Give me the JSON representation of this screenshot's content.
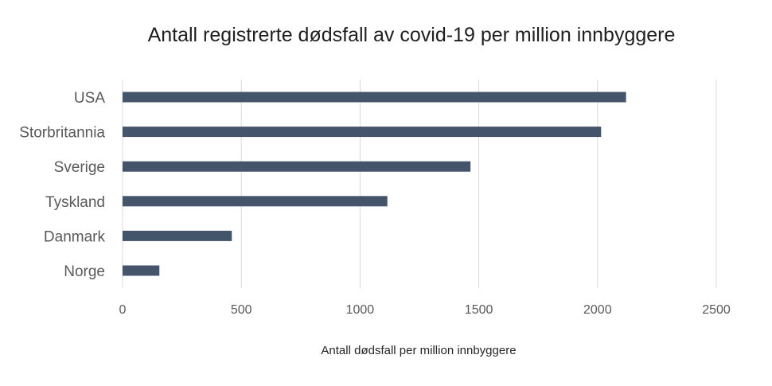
{
  "chart_data": {
    "type": "bar",
    "orientation": "horizontal",
    "title": "Antall registrerte dødsfall av covid-19 per million innbyggere",
    "xlabel": "Antall dødsfall per million innbyggere",
    "ylabel": "",
    "categories": [
      "USA",
      "Storbritannia",
      "Sverige",
      "Tyskland",
      "Danmark",
      "Norge"
    ],
    "values": [
      2120,
      2015,
      1465,
      1115,
      460,
      155
    ],
    "xlim": [
      0,
      2500
    ],
    "xticks": [
      0,
      500,
      1000,
      1500,
      2000,
      2500
    ],
    "xtick_labels": [
      "0",
      "500",
      "1000",
      "1500",
      "2000",
      "2500"
    ],
    "grid": true,
    "legend": "none",
    "colors": {
      "bar": "#44546a",
      "grid": "#d9d9d9",
      "text": "#595959",
      "title": "#1f1f1f"
    }
  }
}
